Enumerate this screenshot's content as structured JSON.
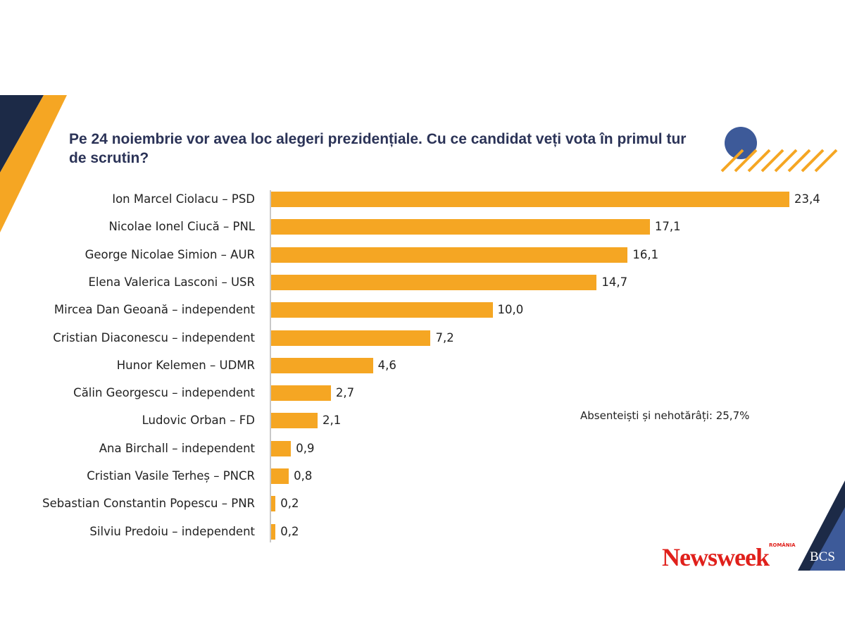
{
  "chart_data": {
    "type": "bar",
    "orientation": "horizontal",
    "title": "Pe 24 noiembrie vor avea loc alegeri prezidențiale. Cu ce candidat veți vota în primul tur de scrutin?",
    "categories": [
      "Ion Marcel Ciolacu – PSD",
      "Nicolae Ionel Ciucă – PNL",
      "George Nicolae Simion – AUR",
      "Elena Valerica Lasconi – USR",
      "Mircea Dan Geoană – independent",
      "Cristian Diaconescu – independent",
      "Hunor Kelemen – UDMR",
      "Călin Georgescu – independent",
      "Ludovic Orban – FD",
      "Ana Birchall – independent",
      "Cristian Vasile Terheș – PNCR",
      "Sebastian Constantin Popescu – PNR",
      "Silviu Predoiu – independent"
    ],
    "values": [
      23.4,
      17.1,
      16.1,
      14.7,
      10.0,
      7.2,
      4.6,
      2.7,
      2.1,
      0.9,
      0.8,
      0.2,
      0.2
    ],
    "value_labels": [
      "23,4",
      "17,1",
      "16,1",
      "14,7",
      "10,0",
      "7,2",
      "4,6",
      "2,7",
      "2,1",
      "0,9",
      "0,8",
      "0,2",
      "0,2"
    ],
    "annotation": "Absenteiști și nehotărâți: 25,7%",
    "xlim": [
      0,
      23.4
    ],
    "bar_color": "#f5a623"
  },
  "branding": {
    "newsweek": "Newsweek",
    "newsweek_sub": "ROMÂNIA",
    "bcs": "BCS"
  },
  "colors": {
    "navy": "#1c2a47",
    "orange": "#f5a623",
    "blue": "#3d5a99"
  }
}
